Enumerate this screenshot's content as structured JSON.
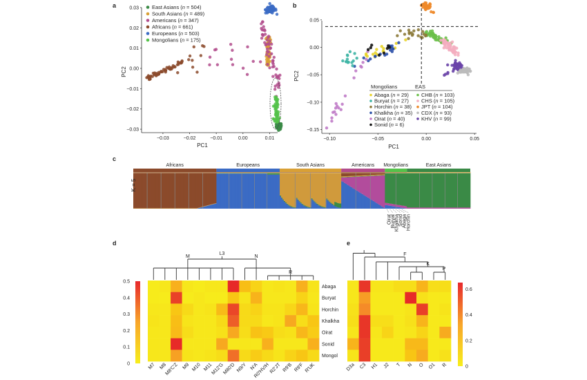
{
  "figure": {
    "panel_labels": [
      "a",
      "b",
      "c",
      "d",
      "e"
    ]
  },
  "chart_data": [
    {
      "panel": "a",
      "type": "scatter",
      "title": "",
      "xlabel": "PC1",
      "ylabel": "PC2",
      "xlim": [
        -0.038,
        0.013
      ],
      "ylim": [
        -0.031,
        0.031
      ],
      "xticks": [
        -0.03,
        -0.02,
        -0.01,
        0.0,
        0.01
      ],
      "xtick_labels": [
        "-0.03",
        "-0.02",
        "-0.01",
        "0.00",
        "0.01"
      ],
      "yticks": [
        0.03,
        0.02,
        0.01,
        0.0,
        -0.01,
        -0.02,
        -0.03
      ],
      "ytick_labels": [
        "0.03",
        "0.02",
        "0.01",
        "0.00",
        "-0.01",
        "-0.02",
        "-0.03"
      ],
      "legend_position": "top-left",
      "series": [
        {
          "name": "East Asians",
          "n": "504",
          "color": "#3a8a46",
          "centroid": [
            0.0118,
            -0.028
          ],
          "spread": [
            0.0008,
            0.0015
          ]
        },
        {
          "name": "South Asians",
          "n": "489",
          "color": "#d9a035",
          "centroid": [
            0.0095,
            0.007
          ],
          "spread": [
            0.0007,
            0.006
          ]
        },
        {
          "name": "Americans",
          "n": "347",
          "color": "#b24c8c",
          "centroid": [
            0.005,
            0.012
          ],
          "spread": [
            0.005,
            0.01
          ]
        },
        {
          "name": "Africans",
          "n": "661",
          "color": "#8b4a2b",
          "centroid": [
            -0.029,
            -0.001
          ],
          "spread": [
            0.006,
            0.003
          ]
        },
        {
          "name": "Europeans",
          "n": "503",
          "color": "#3b6bc4",
          "centroid": [
            0.0105,
            0.029
          ],
          "spread": [
            0.001,
            0.0015
          ]
        },
        {
          "name": "Mongolians",
          "n": "175",
          "color": "#55c24a",
          "centroid": [
            0.0115,
            -0.019
          ],
          "spread": [
            0.0006,
            0.004
          ]
        }
      ],
      "annotations": [
        "dashed ellipse around Mongolians"
      ]
    },
    {
      "panel": "b",
      "type": "scatter",
      "title": "",
      "xlabel": "PC1",
      "ylabel": "PC2",
      "xlim": [
        -0.108,
        0.052
      ],
      "ylim": [
        -0.153,
        0.08
      ],
      "xticks": [
        -0.1,
        -0.05,
        0.0,
        0.05
      ],
      "xtick_labels": [
        "-0.10",
        "-0.05",
        "0.00",
        "0.05"
      ],
      "yticks": [
        0.05,
        0.0,
        -0.05,
        -0.1,
        -0.15
      ],
      "ytick_labels": [
        "0.05",
        "0.00",
        "-0.05",
        "-0.10",
        "-0.15"
      ],
      "reference_lines": {
        "vertical_x": -0.005,
        "horizontal_y": 0.038
      },
      "legend_position": "bottom-right",
      "legend_groups": [
        "Mongolians",
        "EAS"
      ],
      "series": [
        {
          "name": "Abaga",
          "n": "29",
          "group": "Mongolians",
          "color": "#e8d42a",
          "centroid": [
            -0.045,
            -0.005
          ],
          "spread": [
            0.015,
            0.008
          ]
        },
        {
          "name": "Buryat",
          "n": "27",
          "group": "Mongolians",
          "color": "#3fb5a5",
          "centroid": [
            -0.082,
            -0.025
          ],
          "spread": [
            0.008,
            0.008
          ]
        },
        {
          "name": "Horchin",
          "n": "38",
          "group": "Mongolians",
          "color": "#8c7a3a",
          "centroid": [
            -0.02,
            0.02
          ],
          "spread": [
            0.012,
            0.007
          ]
        },
        {
          "name": "Khalkha",
          "n": "35",
          "group": "Mongolians",
          "color": "#2a4fa8",
          "centroid": [
            -0.06,
            -0.015
          ],
          "spread": [
            0.015,
            0.01
          ]
        },
        {
          "name": "Oirat",
          "n": "40",
          "group": "Mongolians",
          "color": "#c07cc8",
          "centroid": [
            -0.08,
            -0.06
          ],
          "spread": [
            0.012,
            0.025
          ]
        },
        {
          "name": "Sonid",
          "n": "6",
          "group": "Mongolians",
          "color": "#111111",
          "centroid": [
            -0.06,
            -0.01
          ],
          "spread": [
            0.008,
            0.006
          ]
        },
        {
          "name": "CHB",
          "n": "103",
          "group": "EAS",
          "color": "#6cc04a",
          "centroid": [
            0.008,
            0.02
          ],
          "spread": [
            0.007,
            0.006
          ]
        },
        {
          "name": "CHS",
          "n": "105",
          "group": "EAS",
          "color": "#f4aec0",
          "centroid": [
            0.025,
            0.0
          ],
          "spread": [
            0.005,
            0.007
          ]
        },
        {
          "name": "JPT",
          "n": "104",
          "group": "EAS",
          "color": "#ee8a2a",
          "centroid": [
            0.0,
            0.073
          ],
          "spread": [
            0.003,
            0.004
          ]
        },
        {
          "name": "CDX",
          "n": "93",
          "group": "EAS",
          "color": "#bbbbbb",
          "centroid": [
            0.042,
            -0.042
          ],
          "spread": [
            0.003,
            0.003
          ]
        },
        {
          "name": "KHV",
          "n": "99",
          "group": "EAS",
          "color": "#6a44a8",
          "centroid": [
            0.035,
            -0.035
          ],
          "spread": [
            0.004,
            0.005
          ]
        }
      ]
    },
    {
      "panel": "c",
      "type": "bar",
      "subtype": "stacked-admixture",
      "ylabel": "K = 5",
      "groups": [
        "Africans",
        "Europeans",
        "South Asians",
        "Americans",
        "Mongolians",
        "East Asians"
      ],
      "group_widths": [
        661,
        503,
        489,
        347,
        175,
        504
      ],
      "group_header_colors": [
        "#8b4a2b",
        "#3b6bc4",
        "#d9a035",
        "#b24c8c",
        "#55c24a",
        "#3a8a46"
      ],
      "components": [
        {
          "name": "African",
          "color": "#8b4a2b"
        },
        {
          "name": "European",
          "color": "#3b6bc4"
        },
        {
          "name": "South Asian",
          "color": "#d09a3c"
        },
        {
          "name": "American",
          "color": "#b24c9c"
        },
        {
          "name": "East Asian",
          "color": "#3a8a46"
        }
      ],
      "mongolian_subgroup_labels": [
        "Oirat",
        "Buryat",
        "Khalkha",
        "Sonid",
        "Abaga",
        "Horchin"
      ]
    },
    {
      "panel": "d",
      "type": "heatmap",
      "colorbar": {
        "min": 0,
        "max": 0.5,
        "ticks": [
          "0.5",
          "0.4",
          "0.3",
          "0.2",
          "0.1",
          "0"
        ],
        "position": "left"
      },
      "columns": [
        "M7",
        "M8",
        "M8'C'Z",
        "M9",
        "M10",
        "M11",
        "M12'G",
        "M80'D",
        "N9/Y",
        "N'A",
        "R0'HV/H",
        "R2'JT",
        "R9'B",
        "R9'F",
        "R'UK"
      ],
      "rows": [
        "Abaga",
        "Buryat",
        "Horchin",
        "Khalkha",
        "Oirat",
        "Sonid",
        "Mongol"
      ],
      "values": [
        [
          0.01,
          0.02,
          0.18,
          0.02,
          0.01,
          0.02,
          0.02,
          0.48,
          0.14,
          0.08,
          0.02,
          0.03,
          0.02,
          0.18,
          0.03
        ],
        [
          0.01,
          0.01,
          0.42,
          0.01,
          0.02,
          0.01,
          0.01,
          0.12,
          0.03,
          0.17,
          0.02,
          0.02,
          0.02,
          0.08,
          0.02
        ],
        [
          0.02,
          0.02,
          0.12,
          0.06,
          0.02,
          0.03,
          0.15,
          0.4,
          0.06,
          0.08,
          0.03,
          0.03,
          0.07,
          0.16,
          0.03
        ],
        [
          0.03,
          0.02,
          0.14,
          0.03,
          0.02,
          0.02,
          0.06,
          0.35,
          0.06,
          0.06,
          0.02,
          0.03,
          0.2,
          0.05,
          0.12
        ],
        [
          0.02,
          0.02,
          0.15,
          0.05,
          0.02,
          0.02,
          0.04,
          0.2,
          0.05,
          0.13,
          0.11,
          0.05,
          0.04,
          0.16,
          0.1
        ],
        [
          0.02,
          0.02,
          0.48,
          0.02,
          0.02,
          0.02,
          0.2,
          0.02,
          0.02,
          0.02,
          0.18,
          0.02,
          0.02,
          0.02,
          0.18
        ],
        [
          0.02,
          0.02,
          0.22,
          0.03,
          0.02,
          0.03,
          0.05,
          0.32,
          0.06,
          0.1,
          0.06,
          0.03,
          0.08,
          0.12,
          0.06
        ]
      ],
      "dendrogram_labels": [
        "L3",
        "M",
        "N",
        "R"
      ]
    },
    {
      "panel": "e",
      "type": "heatmap",
      "colorbar": {
        "min": 0,
        "max": 0.65,
        "ticks": [
          "0.6",
          "0.4",
          "0.2",
          "0"
        ],
        "position": "right"
      },
      "columns": [
        "D3a",
        "C3",
        "H1",
        "J2",
        "T",
        "N",
        "O",
        "O1",
        "R"
      ],
      "rows": [
        "Abaga",
        "Buryat",
        "Horchin",
        "Khalkha",
        "Oirat",
        "Sonid",
        "Mongol"
      ],
      "values": [
        [
          0.03,
          0.58,
          0.03,
          0.03,
          0.06,
          0.06,
          0.22,
          0.06,
          0.06
        ],
        [
          0.03,
          0.3,
          0.02,
          0.02,
          0.02,
          0.62,
          0.05,
          0.02,
          0.02
        ],
        [
          0.05,
          0.35,
          0.02,
          0.02,
          0.02,
          0.04,
          0.55,
          0.02,
          0.04
        ],
        [
          0.06,
          0.58,
          0.06,
          0.06,
          0.02,
          0.05,
          0.22,
          0.02,
          0.02
        ],
        [
          0.03,
          0.58,
          0.03,
          0.1,
          0.02,
          0.03,
          0.1,
          0.02,
          0.25
        ],
        [
          0.22,
          0.55,
          0.02,
          0.02,
          0.02,
          0.2,
          0.2,
          0.02,
          0.02
        ],
        [
          0.04,
          0.55,
          0.02,
          0.02,
          0.02,
          0.16,
          0.25,
          0.02,
          0.05
        ]
      ],
      "dendrogram_labels": [
        "F",
        "K",
        "P"
      ]
    }
  ]
}
